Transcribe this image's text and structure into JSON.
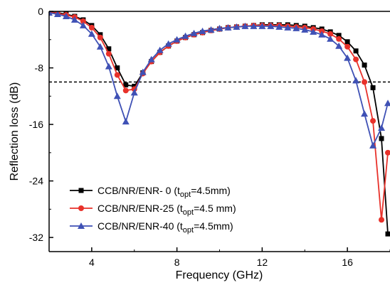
{
  "chart_data": {
    "type": "line",
    "title": "",
    "xlabel": "Frequency (GHz)",
    "ylabel": "Reflection loss (dB)",
    "xlim": [
      2,
      18
    ],
    "ylim": [
      -34,
      0
    ],
    "x_ticks": [
      4,
      8,
      12,
      16
    ],
    "y_ticks": [
      0,
      -8,
      -16,
      -24,
      -32
    ],
    "x_tick_labels": [
      "4",
      "8",
      "12",
      "16"
    ],
    "y_tick_labels": [
      "0",
      "-8",
      "-16",
      "-24",
      "-32"
    ],
    "reference_line": {
      "y": -10,
      "style": "dashed"
    },
    "grid": false,
    "legend_position": "bottom-left",
    "series": [
      {
        "legend_label": "CCB/NR/ENR- 0",
        "legend_note": "(t",
        "legend_sub": "opt",
        "legend_note_end": "=4.5mm)",
        "color": "#000000",
        "marker": "square",
        "x": [
          2.0,
          2.4,
          2.8,
          3.2,
          3.6,
          4.0,
          4.4,
          4.8,
          5.2,
          5.6,
          6.0,
          6.4,
          6.8,
          7.2,
          7.6,
          8.0,
          8.4,
          8.8,
          9.2,
          9.6,
          10.0,
          10.4,
          10.8,
          11.2,
          11.6,
          12.0,
          12.4,
          12.8,
          13.2,
          13.6,
          14.0,
          14.4,
          14.8,
          15.2,
          15.6,
          16.0,
          16.4,
          16.8,
          17.2,
          17.6,
          17.9
        ],
        "y": [
          -0.1,
          -0.2,
          -0.4,
          -0.7,
          -1.2,
          -2.0,
          -3.3,
          -5.3,
          -8.0,
          -10.4,
          -10.6,
          -8.7,
          -7.1,
          -5.8,
          -4.9,
          -4.2,
          -3.7,
          -3.3,
          -3.0,
          -2.7,
          -2.5,
          -2.3,
          -2.2,
          -2.1,
          -2.0,
          -1.9,
          -1.9,
          -1.9,
          -1.9,
          -2.0,
          -2.1,
          -2.3,
          -2.5,
          -2.9,
          -3.4,
          -4.3,
          -5.6,
          -7.6,
          -10.8,
          -18.0,
          -31.5
        ]
      },
      {
        "legend_label": "CCB/NR/ENR-25",
        "legend_note": "(t",
        "legend_sub": "opt",
        "legend_note_end": "=4.5 mm)",
        "color": "#e8312a",
        "marker": "circle",
        "x": [
          2.0,
          2.4,
          2.8,
          3.2,
          3.6,
          4.0,
          4.4,
          4.8,
          5.2,
          5.6,
          6.0,
          6.4,
          6.8,
          7.2,
          7.6,
          8.0,
          8.4,
          8.8,
          9.2,
          9.6,
          10.0,
          10.4,
          10.8,
          11.2,
          11.6,
          12.0,
          12.4,
          12.8,
          13.2,
          13.6,
          14.0,
          14.4,
          14.8,
          15.2,
          15.6,
          16.0,
          16.4,
          16.8,
          17.2,
          17.6,
          17.9
        ],
        "y": [
          -0.1,
          -0.3,
          -0.5,
          -0.8,
          -1.4,
          -2.3,
          -3.7,
          -6.0,
          -9.0,
          -11.2,
          -11.0,
          -8.8,
          -7.1,
          -5.8,
          -4.9,
          -4.2,
          -3.7,
          -3.3,
          -3.0,
          -2.7,
          -2.5,
          -2.3,
          -2.2,
          -2.1,
          -2.0,
          -2.0,
          -2.0,
          -2.0,
          -2.1,
          -2.2,
          -2.3,
          -2.5,
          -2.8,
          -3.2,
          -3.9,
          -5.0,
          -6.8,
          -10.0,
          -15.5,
          -29.5,
          -20.0
        ]
      },
      {
        "legend_label": "CCB/NR/ENR-40",
        "legend_note": "(t",
        "legend_sub": "opt",
        "legend_note_end": "=4.5mm)",
        "color": "#3f51b5",
        "marker": "triangle",
        "x": [
          2.0,
          2.4,
          2.8,
          3.2,
          3.6,
          4.0,
          4.4,
          4.8,
          5.2,
          5.6,
          6.0,
          6.4,
          6.8,
          7.2,
          7.6,
          8.0,
          8.4,
          8.8,
          9.2,
          9.6,
          10.0,
          10.4,
          10.8,
          11.2,
          11.6,
          12.0,
          12.4,
          12.8,
          13.2,
          13.6,
          14.0,
          14.4,
          14.8,
          15.2,
          15.6,
          16.0,
          16.4,
          16.8,
          17.2,
          17.6,
          17.9
        ],
        "y": [
          -0.2,
          -0.4,
          -0.7,
          -1.2,
          -2.0,
          -3.2,
          -5.0,
          -7.8,
          -12.0,
          -15.6,
          -11.5,
          -8.6,
          -6.8,
          -5.5,
          -4.6,
          -4.0,
          -3.5,
          -3.1,
          -2.8,
          -2.6,
          -2.4,
          -2.3,
          -2.2,
          -2.1,
          -2.1,
          -2.1,
          -2.1,
          -2.2,
          -2.3,
          -2.4,
          -2.6,
          -2.9,
          -3.3,
          -3.9,
          -4.9,
          -6.6,
          -9.8,
          -14.5,
          -19.0,
          -16.5,
          -13.0
        ]
      }
    ]
  }
}
